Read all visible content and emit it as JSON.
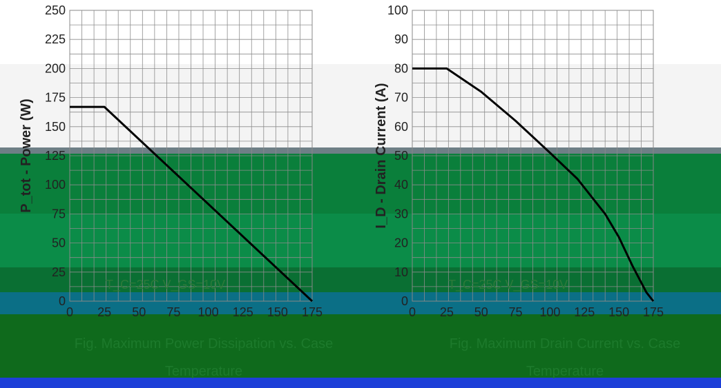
{
  "chart_data": [
    {
      "type": "line",
      "title": "",
      "ylabel": "P_tot - Power (W)",
      "xlabel": "",
      "ylim": [
        0,
        250
      ],
      "xlim": [
        0,
        175
      ],
      "yticks": [
        0,
        25,
        50,
        75,
        100,
        125,
        150,
        175,
        200,
        225,
        250
      ],
      "xticks": [
        0,
        25,
        50,
        75,
        100,
        125,
        150,
        175
      ],
      "grid": true,
      "series": [
        {
          "x": [
            0,
            25,
            175
          ],
          "y": [
            167,
            167,
            0
          ]
        }
      ],
      "annotation": "T_C=25C V_GS=10V",
      "caption_lines": [
        "Fig. Maximum Power Dissipation vs. Case",
        "Temperature"
      ]
    },
    {
      "type": "line",
      "title": "",
      "ylabel": "I_D - Drain Current (A)",
      "xlabel": "",
      "ylim": [
        0,
        100
      ],
      "xlim": [
        0,
        175
      ],
      "yticks": [
        0,
        10,
        20,
        30,
        40,
        50,
        60,
        70,
        80,
        90,
        100
      ],
      "xticks": [
        0,
        25,
        50,
        75,
        100,
        125,
        150,
        175
      ],
      "grid": true,
      "series": [
        {
          "x": [
            0,
            25,
            50,
            75,
            100,
            120,
            140,
            150,
            160,
            170,
            175
          ],
          "y": [
            80,
            80,
            72,
            62,
            51,
            42,
            30,
            22,
            12,
            3,
            0
          ]
        }
      ],
      "annotation": "T_C=25C V_GS=10V",
      "caption_lines": [
        "Fig. Maximum Drain Current vs. Case",
        "Temperature"
      ]
    }
  ],
  "colors": {
    "line": "#000000",
    "grid": "#9a9a9a",
    "green_band": "#0a8a3c",
    "dark_green_band": "#0f6a1c",
    "teal_band": "#0b6f86",
    "blue_band": "#1d3fd8",
    "gray_band": "#f3f3f3"
  }
}
